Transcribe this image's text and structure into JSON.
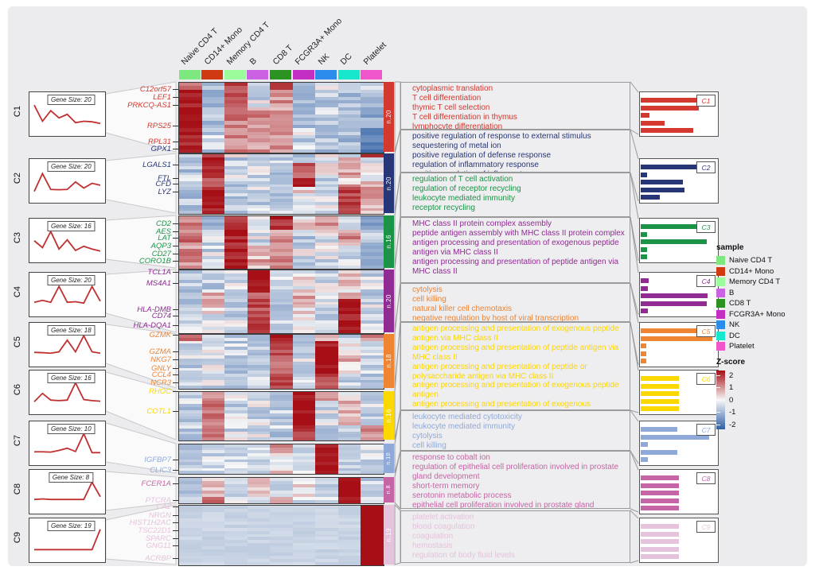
{
  "chart_data": {
    "type": "heatmap",
    "title": "",
    "zlabel": "Z-score",
    "zlim": [
      -2,
      2
    ],
    "legend_position": "right",
    "columns": [
      {
        "label": "Naive CD4 T",
        "color": "#7de87d"
      },
      {
        "label": "CD14+ Mono",
        "color": "#d03a10"
      },
      {
        "label": "Memory CD4 T",
        "color": "#9cfc9c"
      },
      {
        "label": "B",
        "color": "#cb62e3"
      },
      {
        "label": "CD8 T",
        "color": "#2b9421"
      },
      {
        "label": "FCGR3A+ Mono",
        "color": "#c22fc2"
      },
      {
        "label": "NK",
        "color": "#2b8cec"
      },
      {
        "label": "DC",
        "color": "#17e7cd"
      },
      {
        "label": "Platelet",
        "color": "#f156cd"
      }
    ],
    "clusters": [
      {
        "id": "C1",
        "color": "#d3392f",
        "gene_size_label": "Gene Size: 20",
        "n_label": "n.20",
        "genes": [
          "C12orf57",
          "LEF1",
          "PRKCQ-AS1",
          "RPS25",
          "RPL31"
        ],
        "go_terms": [
          "cytoplasmic translation",
          "T cell differentiation",
          "thymic T cell selection",
          "T cell differentiation in thymus",
          "lymphocyte differentiation"
        ],
        "trend": [
          0.88,
          0.3,
          0.68,
          0.42,
          0.55,
          0.25,
          0.3,
          0.28,
          0.22
        ],
        "bars": [
          0.8,
          0.79,
          0.12,
          0.33,
          0.72
        ],
        "heatmap_segments": [
          {
            "rows": 2,
            "z": [
              1.2,
              -0.5,
              1.6,
              -0.4,
              1.9,
              -0.5,
              -0.2,
              -0.4,
              -0.5
            ]
          },
          {
            "rows": 5,
            "z": [
              2.2,
              -0.6,
              1.5,
              -0.2,
              0.7,
              -0.6,
              -0.4,
              -0.5,
              -0.6
            ]
          },
          {
            "rows": 6,
            "z": [
              2.3,
              -0.5,
              1.0,
              0.8,
              0.6,
              -0.5,
              -0.4,
              -0.5,
              -0.8
            ]
          },
          {
            "rows": 7,
            "z": [
              1.9,
              -0.4,
              0.9,
              0.7,
              0.8,
              -0.3,
              -0.5,
              -0.6,
              -1.6
            ]
          }
        ]
      },
      {
        "id": "C2",
        "color": "#273677",
        "gene_size_label": "Gene Size: 20",
        "n_label": "n.20",
        "genes": [
          "GPX1",
          "LGALS1",
          "FTL",
          "CFD",
          "LYZ"
        ],
        "go_terms": [
          "positive regulation of response to external stimulus",
          "sequestering of metal ion",
          "positive regulation of defense response",
          "regulation of inflammatory response",
          "positive regulation of inflammatory response"
        ],
        "trend": [
          0.18,
          0.82,
          0.25,
          0.24,
          0.25,
          0.52,
          0.3,
          0.47,
          0.4
        ],
        "bars": [
          0.96,
          0.09,
          0.58,
          0.6,
          0.26
        ],
        "heatmap_segments": [
          {
            "rows": 1,
            "z": [
              -0.4,
              1.6,
              -0.3,
              -0.2,
              -0.3,
              -0.3,
              -0.2,
              -0.1,
              2.0
            ]
          },
          {
            "rows": 2,
            "z": [
              -0.5,
              2.3,
              -0.4,
              -0.3,
              -0.4,
              -0.2,
              -0.3,
              0.2,
              -0.2
            ]
          },
          {
            "rows": 5,
            "z": [
              -0.5,
              2.0,
              -0.4,
              -0.3,
              -0.4,
              1.4,
              -0.2,
              0.5,
              -0.1
            ]
          },
          {
            "rows": 3,
            "z": [
              -0.5,
              1.2,
              -0.4,
              -0.3,
              -0.4,
              2.3,
              -0.3,
              0.4,
              0.3
            ]
          },
          {
            "rows": 9,
            "z": [
              -0.5,
              2.2,
              -0.4,
              -0.3,
              -0.4,
              0.2,
              -0.3,
              1.5,
              0.6
            ]
          }
        ]
      },
      {
        "id": "C3",
        "color": "#1b9447",
        "gene_size_label": "Gene Size: 16",
        "n_label": "n.16",
        "genes": [
          "CD2",
          "AES",
          "LAT",
          "AQP3",
          "CD27",
          "CORO1B"
        ],
        "go_terms": [
          "regulation of T cell activation",
          "regulation of receptor recycling",
          "leukocyte mediated immunity",
          "receptor recycling"
        ],
        "trend": [
          0.55,
          0.3,
          0.88,
          0.25,
          0.58,
          0.2,
          0.35,
          0.25,
          0.18
        ],
        "bars": [
          0.98,
          0.09,
          0.9,
          0.09,
          0.09
        ],
        "heatmap_segments": [
          {
            "rows": 4,
            "z": [
              0.9,
              -0.5,
              1.8,
              -0.4,
              1.9,
              0.1,
              0.6,
              -0.2,
              -0.9
            ]
          },
          {
            "rows": 5,
            "z": [
              1.1,
              -0.4,
              2.1,
              -0.3,
              0.7,
              -0.4,
              -0.2,
              0.8,
              -0.6
            ]
          },
          {
            "rows": 7,
            "z": [
              0.8,
              -0.3,
              2.2,
              0.5,
              0.9,
              -0.3,
              -0.3,
              -0.4,
              -0.6
            ]
          }
        ]
      },
      {
        "id": "C4",
        "color": "#8f2b93",
        "gene_size_label": "Gene Size: 20",
        "n_label": "n.20",
        "genes": [
          "TCL1A",
          "MS4A1",
          "HLA-DMB",
          "CD74",
          "HLA-DQA1"
        ],
        "go_terms": [
          "MHC class II protein complex assembly",
          "peptide antigen assembly with MHC class II protein complex",
          "antigen processing and presentation of exogenous peptide antigen via MHC class II",
          "antigen processing and presentation of peptide antigen via MHC class II"
        ],
        "trend": [
          0.28,
          0.35,
          0.28,
          0.85,
          0.28,
          0.3,
          0.25,
          0.85,
          0.32
        ],
        "bars": [
          0.11,
          0.1,
          0.91,
          0.9,
          0.1
        ],
        "heatmap_segments": [
          {
            "rows": 7,
            "z": [
              -0.4,
              -0.4,
              -0.3,
              2.4,
              -0.4,
              0.1,
              -0.3,
              0.2,
              -0.3
            ]
          },
          {
            "rows": 2,
            "z": [
              -0.4,
              0.6,
              -0.3,
              1.2,
              -0.3,
              0.6,
              -0.3,
              0.8,
              -0.3
            ]
          },
          {
            "rows": 5,
            "z": [
              -0.4,
              0.3,
              -0.3,
              1.5,
              -0.4,
              0.3,
              -0.3,
              2.2,
              -0.3
            ]
          },
          {
            "rows": 6,
            "z": [
              -0.4,
              -0.2,
              -0.3,
              1.7,
              -0.4,
              -0.2,
              -0.3,
              2.2,
              -0.3
            ]
          }
        ]
      },
      {
        "id": "C5",
        "color": "#ef8432",
        "gene_size_label": "Gene Size: 18",
        "n_label": "n.18",
        "genes": [
          "GZMK",
          "GZMA",
          "NKG7",
          "GNLY",
          "CCL4",
          "NCR3"
        ],
        "go_terms": [
          "cytolysis",
          "cell killing",
          "natural killer cell chemotaxis",
          "negative regulation by host of viral transcription"
        ],
        "trend": [
          0.28,
          0.27,
          0.25,
          0.3,
          0.72,
          0.3,
          0.88,
          0.3,
          0.25
        ],
        "bars": [
          0.98,
          0.98,
          0.08,
          0.08,
          0.08
        ],
        "heatmap_segments": [
          {
            "rows": 2,
            "z": [
              1.1,
              -0.3,
              -0.3,
              -0.4,
              2.2,
              -0.3,
              0.5,
              -0.2,
              0.9
            ]
          },
          {
            "rows": 5,
            "z": [
              -0.3,
              -0.3,
              -0.4,
              -0.4,
              1.5,
              -0.3,
              2.2,
              -0.2,
              -0.4
            ]
          },
          {
            "rows": 6,
            "z": [
              -0.4,
              -0.3,
              -0.4,
              -0.3,
              0.9,
              -0.3,
              2.3,
              0.4,
              -0.4
            ]
          },
          {
            "rows": 5,
            "z": [
              -0.3,
              -0.3,
              -0.3,
              -0.4,
              1.7,
              -0.4,
              1.4,
              -0.4,
              -0.6
            ]
          }
        ]
      },
      {
        "id": "C6",
        "color": "#fbd800",
        "gene_size_label": "Gene Size: 16",
        "n_label": "n.16",
        "genes": [
          "RHOC",
          "COTL1"
        ],
        "go_terms": [
          "antigen processing and presentation of exogenous peptide antigen via MHC class II",
          "antigen processing and presentation of peptide antigen via MHC class II",
          "antigen processing and presentation of peptide or polysaccharide antigen via MHC class II",
          "antigen processing and presentation of exogenous peptide antigen",
          "antigen processing and presentation of exogenous"
        ],
        "trend": [
          0.22,
          0.52,
          0.28,
          0.26,
          0.28,
          0.9,
          0.3,
          0.26,
          0.24
        ],
        "bars": [
          0.52,
          0.52,
          0.52,
          0.52,
          0.52
        ],
        "heatmap_segments": [
          {
            "rows": 3,
            "z": [
              -0.4,
              0.7,
              -0.3,
              -0.3,
              -0.4,
              2.3,
              0.5,
              -0.2,
              -0.4
            ]
          },
          {
            "rows": 8,
            "z": [
              -0.4,
              1.1,
              -0.3,
              -0.3,
              -0.4,
              2.3,
              -0.3,
              0.4,
              -0.3
            ]
          },
          {
            "rows": 5,
            "z": [
              -0.4,
              1.3,
              -0.3,
              -0.3,
              -0.4,
              1.7,
              -0.3,
              -0.3,
              0.9
            ]
          }
        ]
      },
      {
        "id": "C7",
        "color": "#8fa9d9",
        "gene_size_label": "Gene Size: 10",
        "n_label": "n.10",
        "genes": [
          "IGFBP7",
          "CLIC3"
        ],
        "go_terms": [
          "leukocyte mediated cytotoxicity",
          "leukocyte mediated immunity",
          "cytolysis",
          "cell killing"
        ],
        "trend": [
          0.25,
          0.25,
          0.24,
          0.3,
          0.38,
          0.26,
          0.9,
          0.22,
          0.22
        ],
        "bars": [
          0.5,
          0.93,
          0.1,
          0.5,
          0.1
        ],
        "heatmap_segments": [
          {
            "rows": 3,
            "z": [
              -0.4,
              -0.3,
              -0.3,
              -0.3,
              0.8,
              -0.3,
              2.2,
              -0.3,
              -0.3
            ]
          },
          {
            "rows": 7,
            "z": [
              -0.4,
              -0.3,
              -0.3,
              -0.3,
              0.2,
              -0.3,
              2.3,
              -0.3,
              -0.3
            ]
          }
        ]
      },
      {
        "id": "C8",
        "color": "#c565a5",
        "gene_size_label": "Gene Size: 8",
        "n_label": "n.8",
        "genes": [
          "FCER1A"
        ],
        "go_terms": [
          "response to cobalt ion",
          "regulation of epithelial cell proliferation involved in prostate gland development",
          "short-term memory",
          "serotonin metabolic process",
          "epithelial cell proliferation involved in prostate gland"
        ],
        "trend": [
          0.28,
          0.3,
          0.28,
          0.28,
          0.28,
          0.28,
          0.28,
          0.9,
          0.38
        ],
        "bars": [
          0.52,
          0.52,
          0.52,
          0.52,
          0.52
        ],
        "heatmap_segments": [
          {
            "rows": 6,
            "z": [
              -0.4,
              0.3,
              -0.3,
              0.3,
              -0.2,
              0.2,
              -0.3,
              2.3,
              -0.4
            ]
          },
          {
            "rows": 2,
            "z": [
              -0.3,
              1.1,
              -0.3,
              -0.3,
              0.4,
              -0.3,
              -0.3,
              2.0,
              -0.4
            ]
          }
        ]
      },
      {
        "id": "C9",
        "color": "#e5c3dc",
        "gene_size_label": "Gene Size: 19",
        "n_label": "n.19",
        "genes": [
          "PTCRA",
          "CA2",
          "NRGN",
          "HIST1H2AC",
          "TSC22D1",
          "SPARC",
          "GNG11",
          "ACRBP"
        ],
        "go_terms": [
          "platelet activation",
          "blood coagulation",
          "coagulation",
          "hemostasis",
          "regulation of body fluid levels"
        ],
        "trend": [
          0.22,
          0.22,
          0.22,
          0.22,
          0.22,
          0.22,
          0.22,
          0.22,
          0.95
        ],
        "bars": [
          0.52,
          0.52,
          0.52,
          0.52,
          0.52
        ],
        "heatmap_segments": [
          {
            "rows": 19,
            "z": [
              -0.3,
              -0.3,
              -0.3,
              -0.3,
              -0.3,
              -0.3,
              -0.3,
              -0.3,
              2.4
            ]
          }
        ]
      }
    ],
    "legend": {
      "sample_title": "sample",
      "zscore_title": "Z-score",
      "zscore_ticks": [
        "2",
        "1",
        "0",
        "-1",
        "-2"
      ],
      "zscore_colors": [
        "#a50f15",
        "#f7f7f7",
        "#2f5fa5"
      ]
    }
  }
}
